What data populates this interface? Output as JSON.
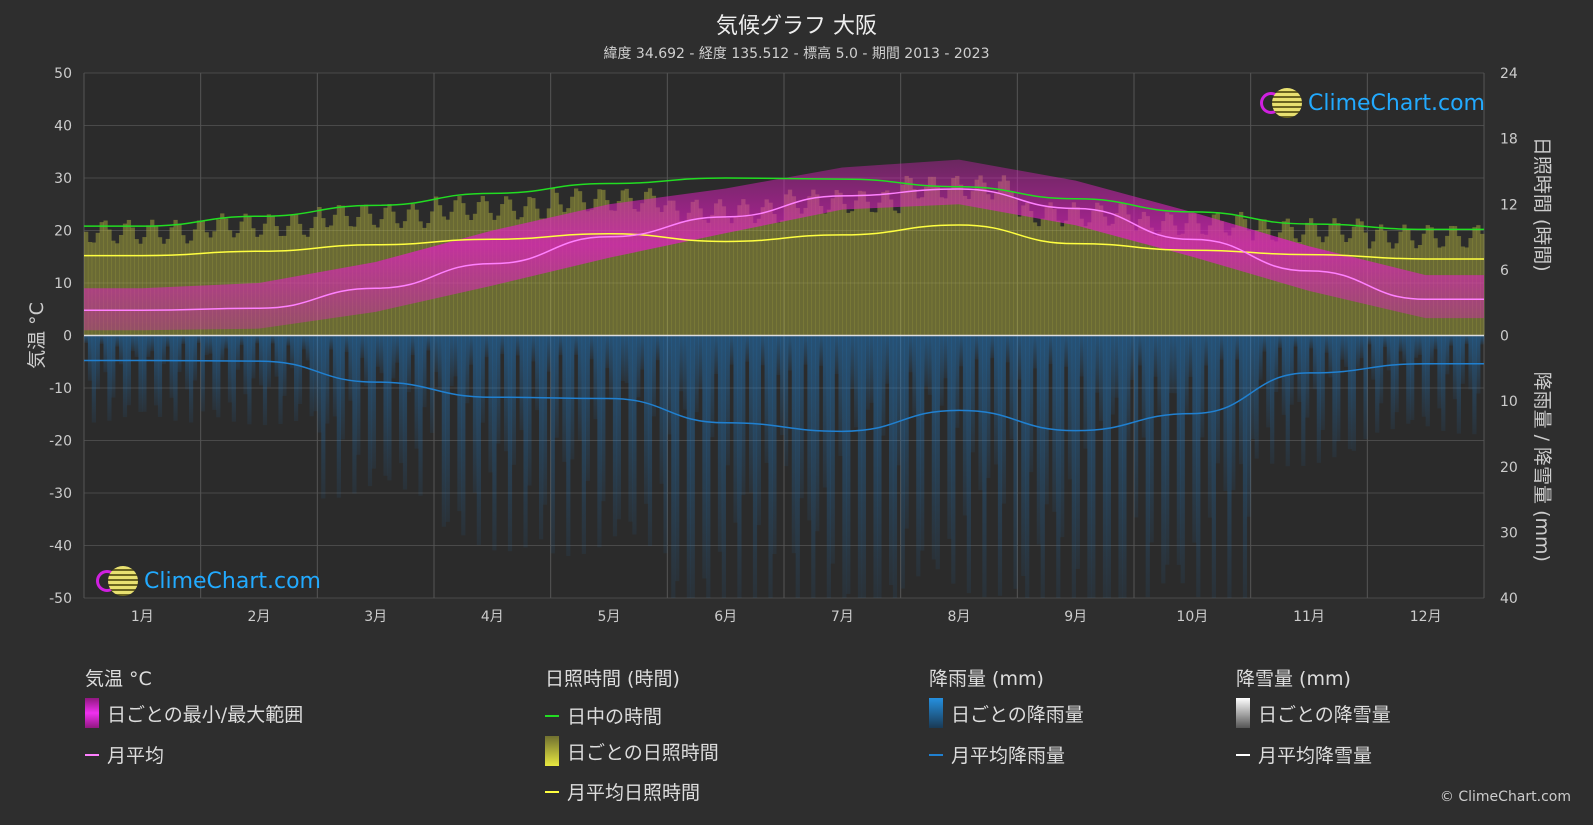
{
  "title": "気候グラフ 大阪",
  "subtitle": "緯度 34.692 - 経度 135.512 - 標高 5.0 - 期間 2013 - 2023",
  "logo_text": "ClimeChart.com",
  "copyright": "© ClimeChart.com",
  "colors": {
    "background": "#2e2e2e",
    "temp_range": "#e020c0",
    "temp_avg": "#ff80ff",
    "daylight": "#22dd22",
    "sunshine_bar": "#b8b840",
    "sunshine_avg": "#ffff40",
    "rain": "#2080d0",
    "snow": "#ffffff"
  },
  "chart_data": {
    "type": "line",
    "months": [
      "1月",
      "2月",
      "3月",
      "4月",
      "5月",
      "6月",
      "7月",
      "8月",
      "9月",
      "10月",
      "11月",
      "12月"
    ],
    "temp_axis": {
      "label": "気温 °C",
      "min": -50,
      "max": 50,
      "ticks": [
        "50",
        "40",
        "30",
        "20",
        "10",
        "0",
        "-10",
        "-20",
        "-30",
        "-40",
        "-50"
      ]
    },
    "sun_axis": {
      "label": "日照時間 (時間)",
      "min": 0,
      "max": 24,
      "ticks": [
        "24",
        "18",
        "12",
        "6",
        "0"
      ]
    },
    "precip_axis": {
      "label": "降雨量 / 降雪量 (mm)",
      "min": 0,
      "max": 40,
      "ticks": [
        "0",
        "10",
        "20",
        "30",
        "40"
      ]
    },
    "series": [
      {
        "name": "月平均",
        "unit": "°C",
        "values": [
          4.8,
          5.2,
          9.0,
          13.7,
          18.8,
          22.6,
          26.6,
          27.9,
          24.2,
          18.3,
          12.3,
          6.9
        ]
      },
      {
        "name": "日中の時間",
        "unit": "h",
        "values": [
          10.0,
          10.9,
          11.9,
          13.0,
          13.9,
          14.4,
          14.3,
          13.6,
          12.5,
          11.3,
          10.2,
          9.7
        ]
      },
      {
        "name": "月平均日照時間",
        "unit": "h",
        "values": [
          7.3,
          7.7,
          8.3,
          8.8,
          9.3,
          8.6,
          9.2,
          10.1,
          8.4,
          7.8,
          7.4,
          7.0
        ]
      },
      {
        "name": "月平均降雨量",
        "unit": "mm",
        "values": [
          3.8,
          3.9,
          7.1,
          9.4,
          9.6,
          13.3,
          14.6,
          11.4,
          14.5,
          11.9,
          5.7,
          4.3
        ]
      },
      {
        "name": "日ごとの最小/最大範囲",
        "unit": "°C",
        "min": [
          1.0,
          1.3,
          4.5,
          9.5,
          14.8,
          19.5,
          24.0,
          25.0,
          21.0,
          15.0,
          8.5,
          3.3
        ],
        "max": [
          9.0,
          10.0,
          14.0,
          20.0,
          25.0,
          28.0,
          32.0,
          33.5,
          29.5,
          23.5,
          17.0,
          11.5
        ]
      }
    ],
    "snow_avg_mm": [
      0,
      0,
      0,
      0,
      0,
      0,
      0,
      0,
      0,
      0,
      0,
      0
    ]
  },
  "legend": {
    "temp": {
      "header": "気温 °C",
      "range": "日ごとの最小/最大範囲",
      "avg": "月平均"
    },
    "sun": {
      "header": "日照時間 (時間)",
      "daylight": "日中の時間",
      "daily": "日ごとの日照時間",
      "avg": "月平均日照時間"
    },
    "rain": {
      "header": "降雨量 (mm)",
      "daily": "日ごとの降雨量",
      "avg": "月平均降雨量"
    },
    "snow": {
      "header": "降雪量 (mm)",
      "daily": "日ごとの降雪量",
      "avg": "月平均降雪量"
    }
  }
}
